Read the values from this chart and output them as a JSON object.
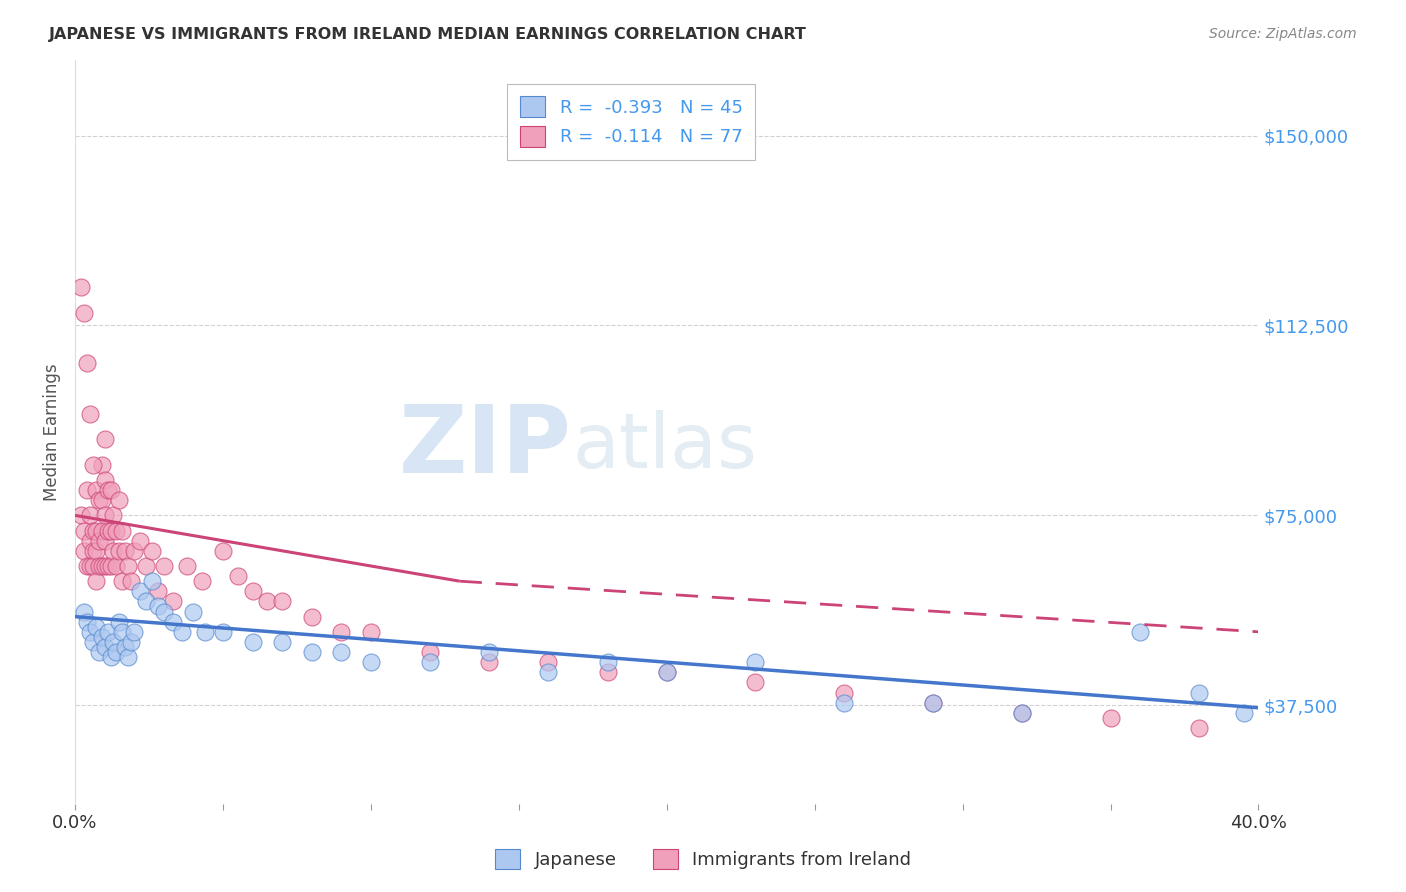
{
  "title": "JAPANESE VS IMMIGRANTS FROM IRELAND MEDIAN EARNINGS CORRELATION CHART",
  "source": "Source: ZipAtlas.com",
  "ylabel": "Median Earnings",
  "yticks": [
    37500,
    75000,
    112500,
    150000
  ],
  "ytick_labels": [
    "$37,500",
    "$75,000",
    "$112,500",
    "$150,000"
  ],
  "xlim": [
    0.0,
    0.4
  ],
  "ylim": [
    18000,
    165000
  ],
  "watermark_zip": "ZIP",
  "watermark_atlas": "atlas",
  "legend": {
    "japanese": {
      "R": -0.393,
      "N": 45,
      "color": "#adc8f0",
      "edge_color": "#5588cc",
      "line_color": "#4477cc"
    },
    "ireland": {
      "R": -0.114,
      "N": 77,
      "color": "#f0a0bb",
      "edge_color": "#cc4477",
      "line_color": "#cc4477"
    }
  },
  "japanese_x": [
    0.003,
    0.004,
    0.005,
    0.006,
    0.007,
    0.008,
    0.009,
    0.01,
    0.011,
    0.012,
    0.013,
    0.014,
    0.015,
    0.016,
    0.017,
    0.018,
    0.019,
    0.02,
    0.022,
    0.024,
    0.026,
    0.028,
    0.03,
    0.033,
    0.036,
    0.04,
    0.044,
    0.05,
    0.06,
    0.07,
    0.08,
    0.09,
    0.1,
    0.12,
    0.14,
    0.16,
    0.18,
    0.2,
    0.23,
    0.26,
    0.29,
    0.32,
    0.36,
    0.38,
    0.395
  ],
  "japanese_y": [
    56000,
    54000,
    52000,
    50000,
    53000,
    48000,
    51000,
    49000,
    52000,
    47000,
    50000,
    48000,
    54000,
    52000,
    49000,
    47000,
    50000,
    52000,
    60000,
    58000,
    62000,
    57000,
    56000,
    54000,
    52000,
    56000,
    52000,
    52000,
    50000,
    50000,
    48000,
    48000,
    46000,
    46000,
    48000,
    44000,
    46000,
    44000,
    46000,
    38000,
    38000,
    36000,
    52000,
    40000,
    36000
  ],
  "ireland_x": [
    0.002,
    0.003,
    0.003,
    0.004,
    0.004,
    0.005,
    0.005,
    0.005,
    0.006,
    0.006,
    0.006,
    0.007,
    0.007,
    0.007,
    0.007,
    0.008,
    0.008,
    0.008,
    0.009,
    0.009,
    0.009,
    0.009,
    0.01,
    0.01,
    0.01,
    0.01,
    0.01,
    0.011,
    0.011,
    0.011,
    0.012,
    0.012,
    0.012,
    0.013,
    0.013,
    0.014,
    0.014,
    0.015,
    0.015,
    0.016,
    0.016,
    0.017,
    0.018,
    0.019,
    0.02,
    0.022,
    0.024,
    0.026,
    0.028,
    0.03,
    0.033,
    0.038,
    0.043,
    0.05,
    0.055,
    0.06,
    0.065,
    0.07,
    0.08,
    0.09,
    0.1,
    0.12,
    0.14,
    0.16,
    0.18,
    0.2,
    0.23,
    0.26,
    0.29,
    0.32,
    0.35,
    0.38,
    0.002,
    0.003,
    0.004,
    0.005,
    0.006
  ],
  "ireland_y": [
    75000,
    68000,
    72000,
    65000,
    80000,
    70000,
    65000,
    75000,
    72000,
    68000,
    65000,
    80000,
    72000,
    68000,
    62000,
    78000,
    70000,
    65000,
    85000,
    78000,
    72000,
    65000,
    90000,
    82000,
    75000,
    70000,
    65000,
    80000,
    72000,
    65000,
    80000,
    72000,
    65000,
    75000,
    68000,
    72000,
    65000,
    78000,
    68000,
    72000,
    62000,
    68000,
    65000,
    62000,
    68000,
    70000,
    65000,
    68000,
    60000,
    65000,
    58000,
    65000,
    62000,
    68000,
    63000,
    60000,
    58000,
    58000,
    55000,
    52000,
    52000,
    48000,
    46000,
    46000,
    44000,
    44000,
    42000,
    40000,
    38000,
    36000,
    35000,
    33000,
    120000,
    115000,
    105000,
    95000,
    85000
  ]
}
